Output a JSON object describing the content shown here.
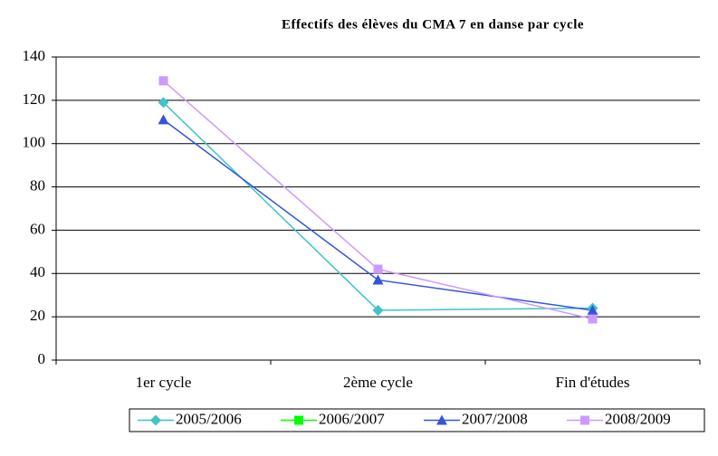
{
  "chart_data": {
    "type": "line",
    "title": "Effectifs des élèves du CMA 7 en danse par cycle",
    "categories": [
      "1er cycle",
      "2ème cycle",
      "Fin d'études"
    ],
    "series": [
      {
        "name": "2005/2006",
        "color": "#40c4c4",
        "marker": "diamond",
        "values": [
          119,
          23,
          24
        ]
      },
      {
        "name": "2006/2007",
        "color": "#00ff00",
        "marker": "square",
        "values": [
          null,
          null,
          null
        ]
      },
      {
        "name": "2007/2008",
        "color": "#3355dd",
        "marker": "triangle",
        "values": [
          111,
          37,
          23
        ]
      },
      {
        "name": "2008/2009",
        "color": "#cc99ff",
        "marker": "square",
        "values": [
          129,
          42,
          19
        ]
      }
    ],
    "ylim": [
      0,
      140
    ],
    "yticks": [
      0,
      20,
      40,
      60,
      80,
      100,
      120,
      140
    ],
    "grid": true,
    "legend": "bottom"
  }
}
